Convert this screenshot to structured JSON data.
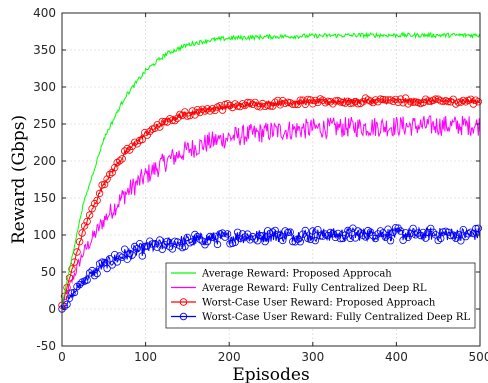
{
  "chart_data": {
    "type": "line",
    "title": "",
    "xlabel": "Episodes",
    "ylabel": "Reward (Gbps)",
    "xlim": [
      0,
      500
    ],
    "ylim": [
      -50,
      400
    ],
    "xticks": [
      0,
      100,
      200,
      300,
      400,
      500
    ],
    "yticks": [
      -50,
      0,
      50,
      100,
      150,
      200,
      250,
      300,
      350,
      400
    ],
    "grid": true,
    "legend_position": "bottom-right",
    "series": [
      {
        "name": "Average Reward: Proposed Approcah",
        "color": "#00ff00",
        "marker": "none",
        "x": [
          0,
          25,
          50,
          75,
          100,
          125,
          150,
          175,
          200,
          250,
          300,
          350,
          400,
          450,
          500
        ],
        "y": [
          5,
          140,
          230,
          286,
          322,
          345,
          357,
          363,
          366,
          368,
          369,
          370,
          370,
          370,
          370
        ],
        "noise": 3
      },
      {
        "name": "Average Reward: Fully Centralized Deep RL",
        "color": "#ff00ff",
        "marker": "none",
        "x": [
          0,
          25,
          50,
          75,
          100,
          125,
          150,
          175,
          200,
          250,
          300,
          350,
          400,
          450,
          500
        ],
        "y": [
          5,
          75,
          120,
          155,
          180,
          200,
          215,
          225,
          232,
          240,
          244,
          246,
          247,
          248,
          248
        ],
        "noise": 14
      },
      {
        "name": "Worst-Case User Reward: Proposed Approach",
        "color": "#ff0000",
        "marker": "circle",
        "x": [
          0,
          25,
          50,
          75,
          100,
          125,
          150,
          175,
          200,
          250,
          300,
          350,
          400,
          450,
          500
        ],
        "y": [
          5,
          105,
          170,
          210,
          237,
          254,
          264,
          270,
          274,
          278,
          280,
          281,
          281,
          281,
          281
        ],
        "noise": 4
      },
      {
        "name": "Worst-Case User Reward: Fully Centralized Deep RL",
        "color": "#0000ff",
        "marker": "circle",
        "x": [
          0,
          25,
          50,
          75,
          100,
          125,
          150,
          175,
          200,
          250,
          300,
          350,
          400,
          450,
          500
        ],
        "y": [
          0,
          38,
          60,
          73,
          82,
          88,
          92,
          95,
          97,
          99,
          100,
          101,
          101,
          101,
          101
        ],
        "noise": 9
      }
    ]
  }
}
